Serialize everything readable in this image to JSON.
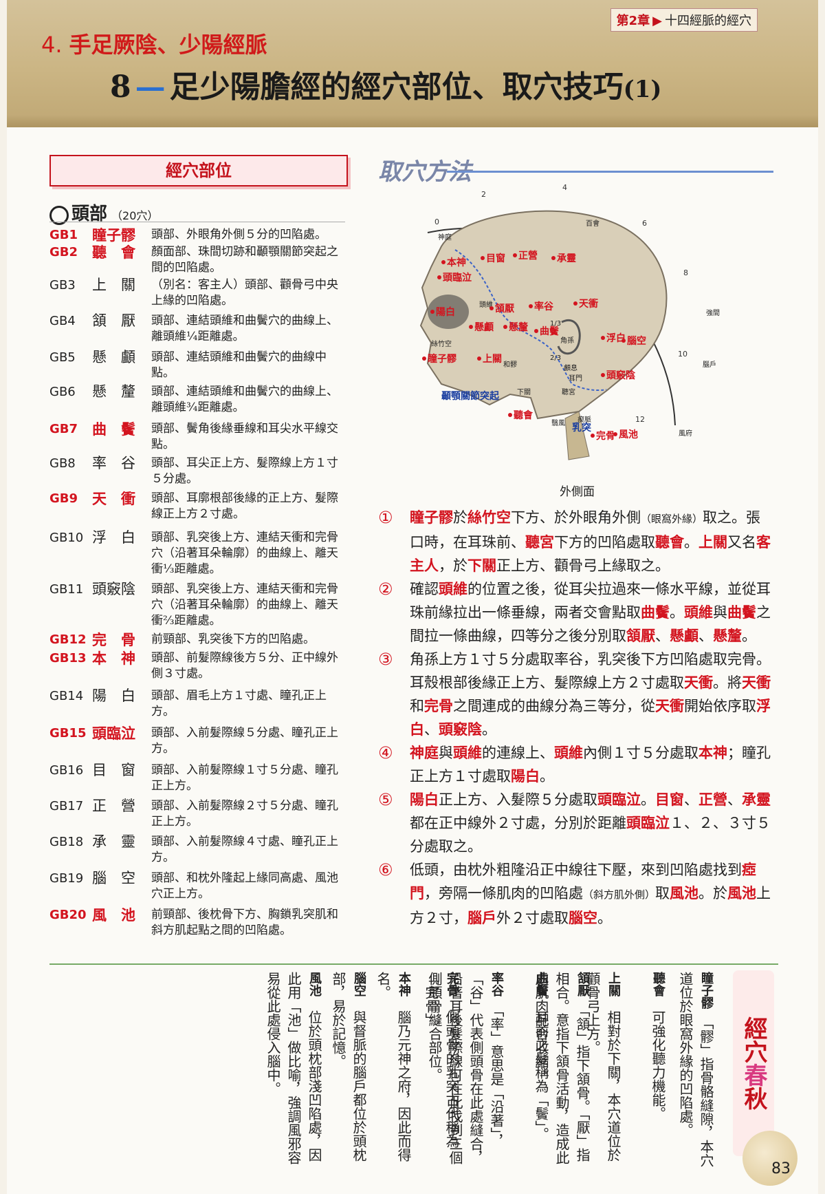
{
  "header": {
    "chapter": "第2章",
    "chapter_topic": "十四經脈的經穴",
    "section_num": "4.",
    "section_title": "手足厥陰、少陽經脈",
    "title_num": "8",
    "title_text": "足少陽膽經的經穴部位、取穴技巧",
    "title_part": "(1)"
  },
  "left": {
    "box_title": "經穴部位",
    "head_label": "頭部",
    "head_count": "（20穴）",
    "points": [
      {
        "code": "GB1",
        "name": "瞳子髎",
        "desc": "頭部、外眼角外側５分的凹陷處。",
        "hl": true
      },
      {
        "code": "GB2",
        "name": "聽　會",
        "desc": "顏面部、珠間切跡和顳顎關節突起之間的凹陷處。",
        "hl": true
      },
      {
        "code": "GB3",
        "name": "上　關",
        "desc": "（別名：客主人）頭部、顴骨弓中央上緣的凹陷處。",
        "hl": false
      },
      {
        "code": "GB4",
        "name": "頷　厭",
        "desc": "頭部、連結頭維和曲鬢穴的曲線上、離頭維¼距離處。",
        "hl": false
      },
      {
        "code": "GB5",
        "name": "懸　顱",
        "desc": "頭部、連結頭維和曲鬢穴的曲線中點。",
        "hl": false
      },
      {
        "code": "GB6",
        "name": "懸　釐",
        "desc": "頭部、連結頭維和曲鬢穴的曲線上、離頭維¾距離處。",
        "hl": false
      },
      {
        "code": "GB7",
        "name": "曲　鬢",
        "desc": "頭部、鬢角後緣垂線和耳尖水平線交點。",
        "hl": true
      },
      {
        "code": "GB8",
        "name": "率　谷",
        "desc": "頭部、耳尖正上方、髮際線上方１寸５分處。",
        "hl": false
      },
      {
        "code": "GB9",
        "name": "天　衝",
        "desc": "頭部、耳廓根部後緣的正上方、髮際線正上方２寸處。",
        "hl": true
      },
      {
        "code": "GB10",
        "name": "浮　白",
        "desc": "頭部、乳突後上方、連結天衝和完骨穴（沿著耳朵輪廓）的曲線上、離天衝⅓距離處。",
        "hl": false
      },
      {
        "code": "GB11",
        "name": "頭竅陰",
        "desc": "頭部、乳突後上方、連結天衝和完骨穴（沿著耳朵輪廓）的曲線上、離天衝⅔距離處。",
        "hl": false
      },
      {
        "code": "GB12",
        "name": "完　骨",
        "desc": "前頸部、乳突後下方的凹陷處。",
        "hl": true
      },
      {
        "code": "GB13",
        "name": "本　神",
        "desc": "頭部、前髮際線後方５分、正中線外側３寸處。",
        "hl": true
      },
      {
        "code": "GB14",
        "name": "陽　白",
        "desc": "頭部、眉毛上方１寸處、瞳孔正上方。",
        "hl": false
      },
      {
        "code": "GB15",
        "name": "頭臨泣",
        "desc": "頭部、入前髮際線５分處、瞳孔正上方。",
        "hl": true
      },
      {
        "code": "GB16",
        "name": "目　窗",
        "desc": "頭部、入前髮際線１寸５分處、瞳孔正上方。",
        "hl": false
      },
      {
        "code": "GB17",
        "name": "正　營",
        "desc": "頭部、入前髮際線２寸５分處、瞳孔正上方。",
        "hl": false
      },
      {
        "code": "GB18",
        "name": "承　靈",
        "desc": "頭部、入前髮際線４寸處、瞳孔正上方。",
        "hl": false
      },
      {
        "code": "GB19",
        "name": "腦　空",
        "desc": "頭部、和枕外隆起上緣同高處、風池穴正上方。",
        "hl": false
      },
      {
        "code": "GB20",
        "name": "風　池",
        "desc": "前頸部、後枕骨下方、胸鎖乳突肌和斜方肌起點之間的凹陷處。",
        "hl": true
      }
    ]
  },
  "right": {
    "method_title": "取穴方法",
    "diagram": {
      "caption": "外側面",
      "scale_labels": [
        "0",
        "2",
        "4",
        "6",
        "8",
        "10",
        "12"
      ],
      "labels_black": [
        "神庭",
        "百會",
        "強間",
        "腦戶",
        "風府",
        "頭維",
        "絲竹空",
        "角孫",
        "耳門",
        "聽宮",
        "下關",
        "和髎",
        "瘈脈",
        "顱息",
        "翳風"
      ],
      "labels_red": [
        "本神",
        "目窗",
        "正營",
        "承靈",
        "頭臨泣",
        "陽白",
        "頷厭",
        "率谷",
        "天衝",
        "懸顱",
        "懸釐",
        "曲鬢",
        "浮白",
        "腦空",
        "瞳子髎",
        "上關",
        "頭竅陰",
        "聽會",
        "完骨",
        "風池"
      ],
      "labels_blue": [
        "顳顎關節突起",
        "乳突"
      ],
      "fractions": [
        "1/3",
        "2/3"
      ]
    },
    "steps": [
      {
        "n": "①"
      },
      {
        "n": "②"
      },
      {
        "n": "③"
      },
      {
        "n": "④"
      },
      {
        "n": "⑤"
      },
      {
        "n": "⑥"
      }
    ],
    "step_text": {
      "s1": [
        "瞳子髎",
        "於",
        "絲竹空",
        "下方、於外眼角外側",
        "（眼窩外緣）",
        "取之。張口時，在耳珠前、",
        "聽宮",
        "下方的凹陷處取",
        "聽會",
        "。",
        "上關",
        "又名",
        "客主人",
        "，於",
        "下關",
        "正上方、顴骨弓上緣取之。"
      ],
      "s2": [
        "確認",
        "頭維",
        "的位置之後，從耳尖拉過來一條水平線，並從耳珠前緣拉出一條垂線，兩者交會點取",
        "曲鬢",
        "。",
        "頭維",
        "與",
        "曲鬢",
        "之間拉一條曲線，四等分之後分別取",
        "頷厭",
        "、",
        "懸顱",
        "、",
        "懸釐",
        "。"
      ],
      "s3": [
        "角孫上方１寸５分處取率谷，乳突後下方凹陷處取完骨。耳殼根部後緣正上方、髮際線上方２寸處取",
        "天衝",
        "。將",
        "天衝",
        "和",
        "完骨",
        "之間連成的曲線分為三等分，從",
        "天衝",
        "開始依序取",
        "浮白",
        "、",
        "頭竅陰",
        "。"
      ],
      "s4": [
        "神庭",
        "與",
        "頭維",
        "的連線上、",
        "頭維",
        "內側１寸５分處取",
        "本神",
        "；瞳孔正上方１寸處取",
        "陽白",
        "。"
      ],
      "s5": [
        "陽白",
        "正上方、入髮際５分處取",
        "頭臨泣",
        "。",
        "目窗",
        "、",
        "正營",
        "、",
        "承靈",
        "都在正中線外２寸處，分別於距離",
        "頭臨泣",
        "１、２、３寸５分處取之。"
      ],
      "s6": [
        "低頭，由枕外粗隆沿正中線往下壓，來到凹陷處找到",
        "瘂門",
        "，旁隔一條肌肉的凹陷處",
        "（斜方肌外側）",
        "取",
        "風池",
        "。於",
        "風池",
        "上方２寸，",
        "腦戶",
        "外２寸處取",
        "腦空",
        "。"
      ]
    }
  },
  "bottom": {
    "box_title": [
      "經",
      "穴",
      "春",
      "秋"
    ],
    "entries": [
      {
        "head": "瞳子髎",
        "text": "「髎」指骨骼縫隙，本穴道位於眼窩外緣的凹陷處。"
      },
      {
        "head": "聽會",
        "text": "可強化聽力機能。"
      },
      {
        "head": "上關",
        "text": "相對於下關，本穴道位於顴骨弓上方。"
      },
      {
        "head": "頷厭",
        "text": "「頷」指下頷骨。「厭」指相合。意指下頷骨活動，造成此處肌肉配合收縮。"
      },
      {
        "head": "曲鬢",
        "text": "耳前之髮稱為「鬢」。"
      },
      {
        "head": "率谷",
        "text": "「率」意思是「沿著」，「谷」代表側頭骨在此處縫合，沿著耳後髮際線可在此找到三個側頭骨縫合部位。"
      },
      {
        "head": "完骨",
        "text": "側頭骨的乳突古代稱為「完骨」。"
      },
      {
        "head": "本神",
        "text": "腦乃元神之府，因此而得名。"
      },
      {
        "head": "腦空",
        "text": "與督脈的腦戶都位於頭枕部，易於記憶。"
      },
      {
        "head": "風池",
        "text": "位於頭枕部淺凹陷處，因此用「池」做比喻，強調風邪容易從此處侵入腦中。"
      }
    ],
    "page_number": "83"
  }
}
